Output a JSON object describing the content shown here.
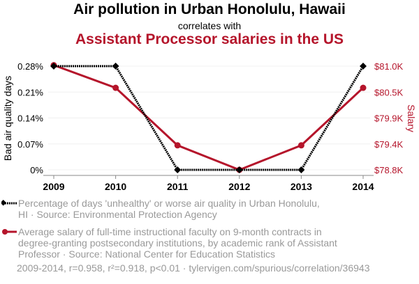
{
  "title": "Air pollution in Urban Honolulu, Hawaii",
  "subtitle": "correlates with",
  "title2": "Assistant Processor salaries in the US",
  "colors": {
    "series1": "#000000",
    "series2": "#b5152b",
    "footer": "#999999"
  },
  "chart_data": {
    "type": "line",
    "x": [
      2009,
      2010,
      2011,
      2012,
      2013,
      2014
    ],
    "x_tick_labels": [
      "2009",
      "2010",
      "2011",
      "2012",
      "2013",
      "2014"
    ],
    "left_axis": {
      "label": "Bad air quality days",
      "ylim": [
        0,
        0.28
      ],
      "ticks": [
        0,
        0.07,
        0.14,
        0.21,
        0.28
      ],
      "tick_labels": [
        "0%",
        "0.07%",
        "0.14%",
        "0.21%",
        "0.28%"
      ]
    },
    "right_axis": {
      "label": "Salary",
      "ylim": [
        78.8,
        81.0
      ],
      "ticks": [
        78.8,
        79.35,
        79.9,
        80.45,
        81.0
      ],
      "tick_labels": [
        "$78.8K",
        "$79.4K",
        "$79.9K",
        "$80.5K",
        "$81.0K"
      ]
    },
    "series": [
      {
        "name": "Percentage of days 'unhealthy' or worse air quality in Urban Honolulu, HI · Source: Environmental Protection Agency",
        "axis": "left",
        "values": [
          0.28,
          0.28,
          0,
          0,
          0,
          0.28
        ]
      },
      {
        "name": "Average salary of full-time instructional faculty on 9-month contracts in degree-granting postsecondary institutions, by academic rank of Assistant Professor · Source: National Center for Education Statistics",
        "axis": "right",
        "values": [
          81.02,
          80.54,
          79.32,
          78.8,
          79.32,
          80.54
        ]
      }
    ],
    "grid": true,
    "legend_position": "bottom"
  },
  "legend": [
    {
      "line1": "Percentage of days 'unhealthy' or worse air quality in Urban Honolulu,",
      "line2": "HI · Source: Environmental Protection Agency"
    },
    {
      "line1": "Average salary of full-time instructional faculty on 9-month contracts in",
      "line2": "degree-granting postsecondary institutions, by academic rank of Assistant",
      "line3": "Professor · Source: National Center for Education Statistics"
    }
  ],
  "footer": "2009-2014, r=0.958, r²=0.918, p<0.01 · tylervigen.com/spurious/correlation/36943"
}
